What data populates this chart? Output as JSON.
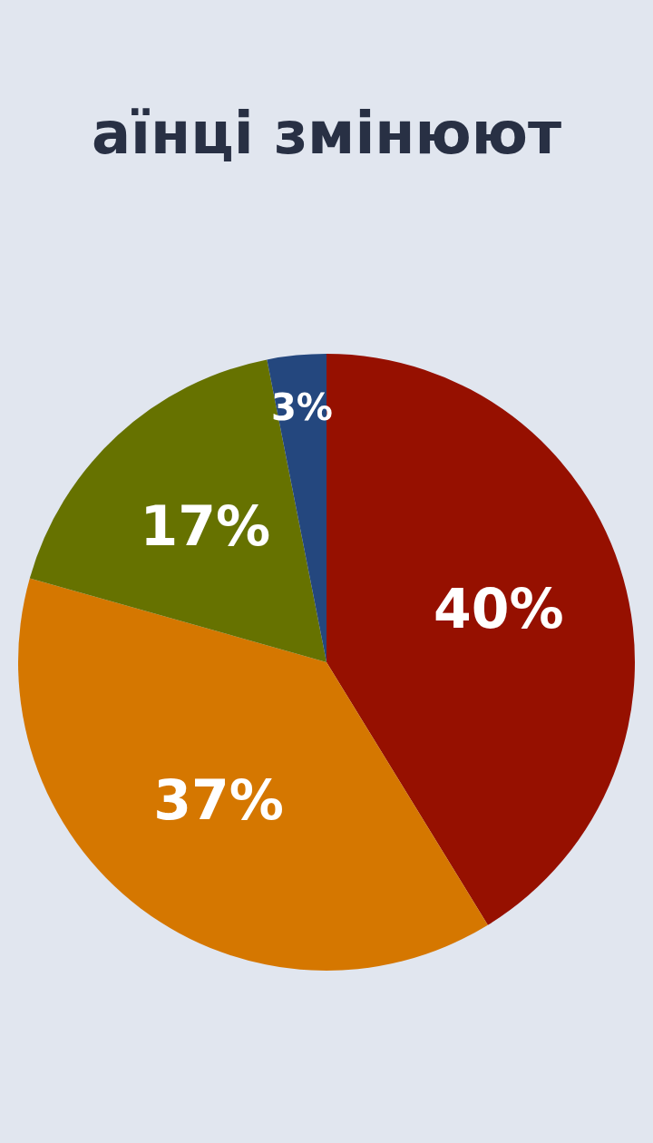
{
  "chart_data": {
    "type": "pie",
    "title": "аїнці змінюют",
    "categories": [
      null,
      null,
      null,
      null
    ],
    "values": [
      40,
      37,
      17,
      3
    ],
    "colors": [
      "#961000",
      "#d57700",
      "#667200",
      "#24477e"
    ],
    "value_labels": [
      "40%",
      "37%",
      "17%",
      "3%"
    ],
    "legend": false
  }
}
